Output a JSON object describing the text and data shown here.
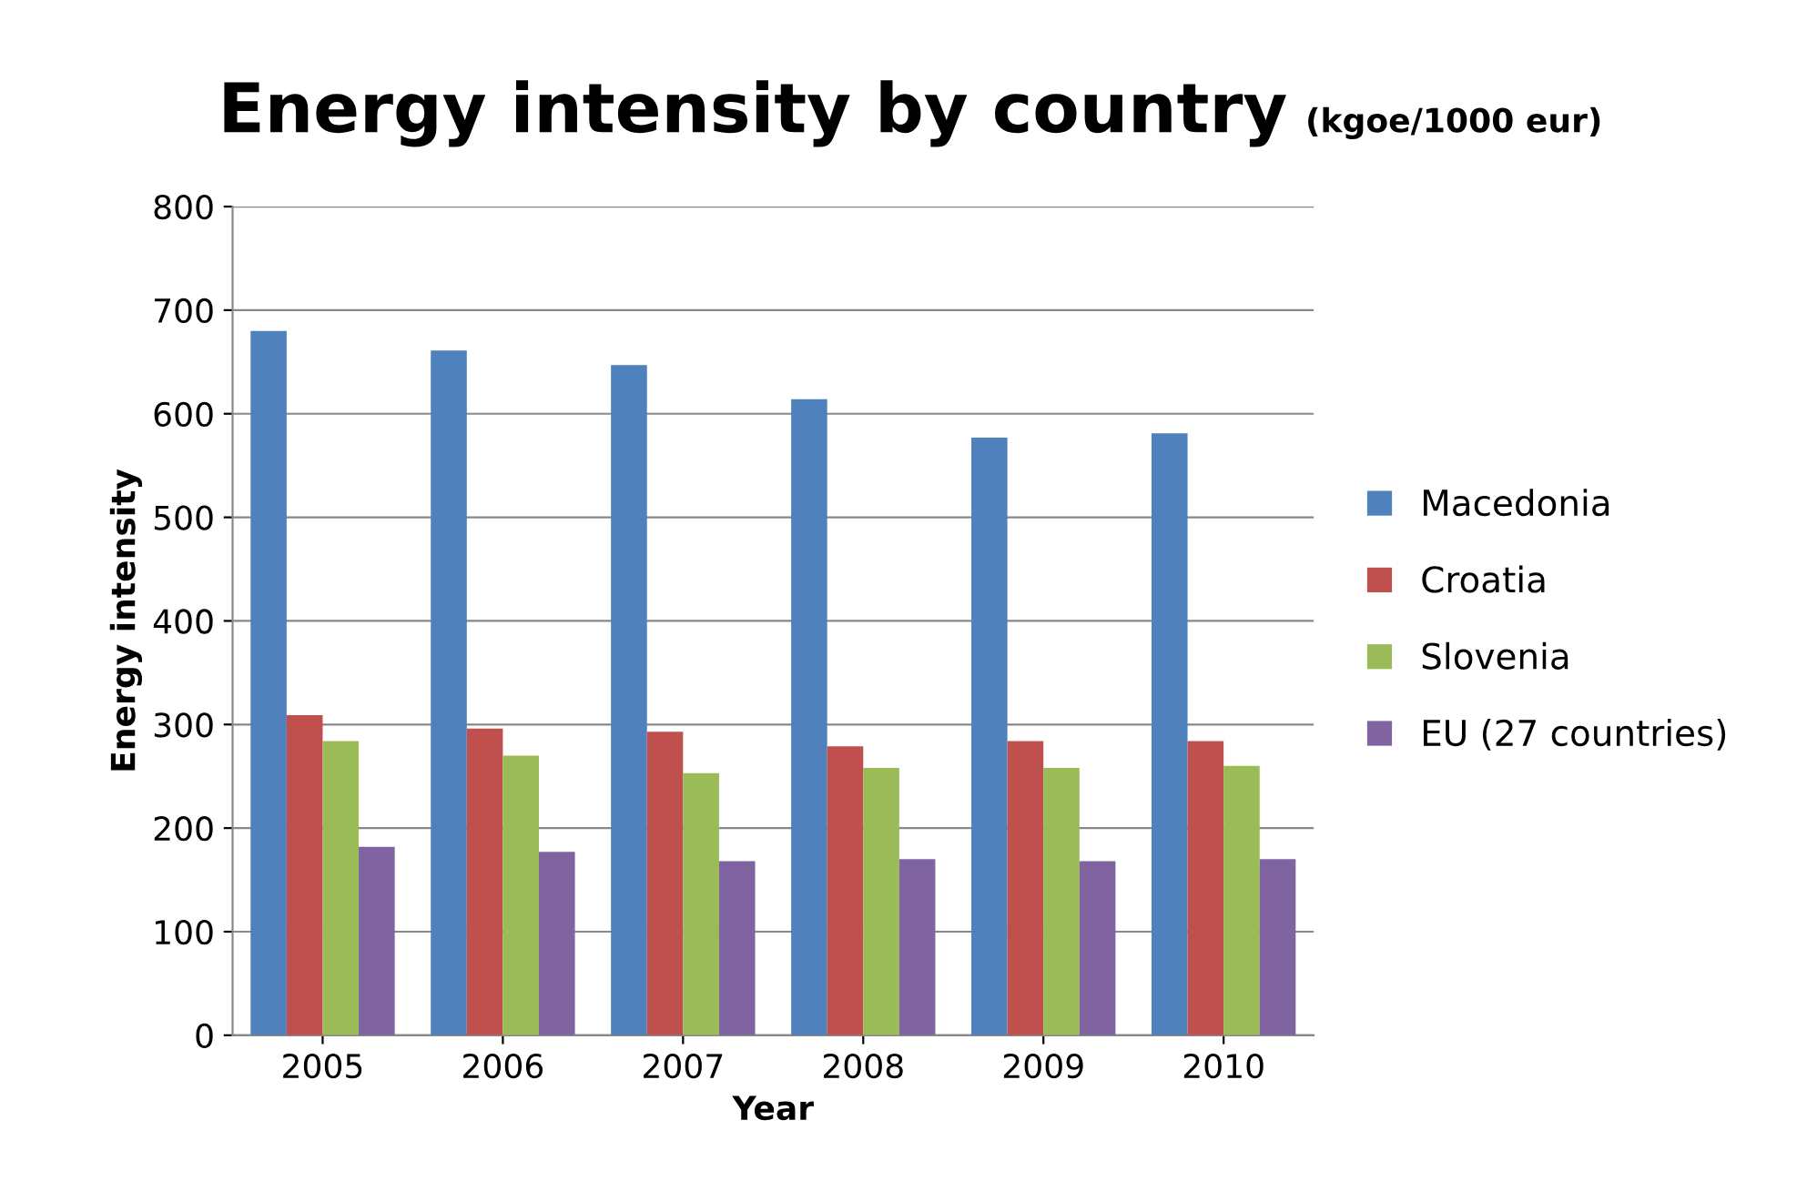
{
  "chart_data": {
    "type": "bar",
    "title": "Energy intensity by country",
    "subtitle": "(kgoe/1000 eur)",
    "xlabel": "Year",
    "ylabel": "Energy intensity",
    "categories": [
      "2005",
      "2006",
      "2007",
      "2008",
      "2009",
      "2010"
    ],
    "series": [
      {
        "name": "Macedonia",
        "color": "#4f81bd",
        "values": [
          680,
          661,
          647,
          614,
          577,
          581
        ]
      },
      {
        "name": "Croatia",
        "color": "#c0504d",
        "values": [
          309,
          296,
          293,
          279,
          284,
          284
        ]
      },
      {
        "name": "Slovenia",
        "color": "#9bbb59",
        "values": [
          284,
          270,
          253,
          258,
          258,
          260
        ]
      },
      {
        "name": "EU (27 countries)",
        "color": "#8064a2",
        "values": [
          182,
          177,
          168,
          170,
          168,
          170
        ]
      }
    ],
    "ylim": [
      0,
      800
    ],
    "yticks": [
      0,
      100,
      200,
      300,
      400,
      500,
      600,
      700,
      800
    ],
    "grid": "y",
    "legend": "right"
  }
}
